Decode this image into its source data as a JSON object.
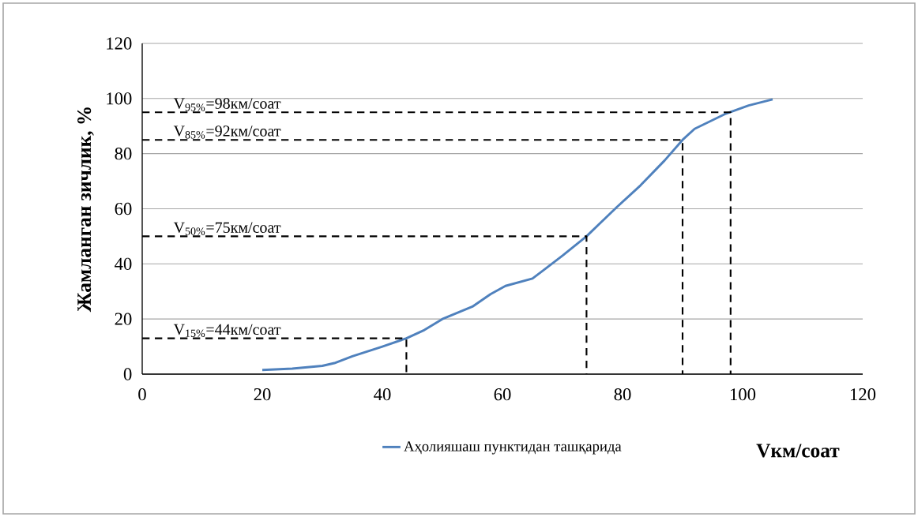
{
  "chart_data": {
    "type": "line",
    "xlabel": "Vкм/соат",
    "ylabel": "Жамланган зичлик, %",
    "xlim": [
      0,
      120
    ],
    "xticks": [
      0,
      20,
      40,
      60,
      80,
      100,
      120
    ],
    "ylim": [
      0,
      120
    ],
    "yticks": [
      0,
      20,
      40,
      60,
      80,
      100,
      120
    ],
    "grid": "y",
    "legend": "bottom",
    "marker": "none",
    "line_style": "solid",
    "series": [
      {
        "name": "Аҳолияшаш пунктидан ташқарида",
        "color": "#4f81bd",
        "x": [
          20,
          25,
          30,
          32,
          35,
          40,
          44,
          47,
          50,
          55,
          58,
          60.5,
          65,
          67,
          70,
          74,
          79,
          83,
          87,
          90,
          92,
          97,
          101,
          105
        ],
        "values": [
          1.5,
          2,
          3,
          4,
          6.5,
          10,
          13,
          16,
          20,
          24.5,
          29,
          32,
          34.7,
          38,
          43,
          50,
          60.5,
          68.5,
          77.5,
          85,
          89,
          94.3,
          97.5,
          99.7
        ]
      },
      {
        "color": "#000000",
        "line_style": "dashed",
        "x": [
          0,
          98,
          98
        ],
        "values": [
          95,
          95,
          0
        ]
      },
      {
        "color": "#000000",
        "line_style": "dashed",
        "x": [
          0,
          90,
          90
        ],
        "values": [
          85,
          85,
          0
        ]
      },
      {
        "color": "#000000",
        "line_style": "dashed",
        "x": [
          0,
          74,
          74
        ],
        "values": [
          50,
          50,
          0
        ]
      },
      {
        "color": "#000000",
        "line_style": "dashed",
        "x": [
          0,
          44,
          44
        ],
        "values": [
          13,
          13,
          0
        ]
      }
    ],
    "annotations": [
      "V$_{95%}$=98км/соат",
      "V$_{85%}$=92км/соат",
      "V$_{50%}$=75км/соат",
      "V$_{15%}$=44км/соат"
    ]
  }
}
